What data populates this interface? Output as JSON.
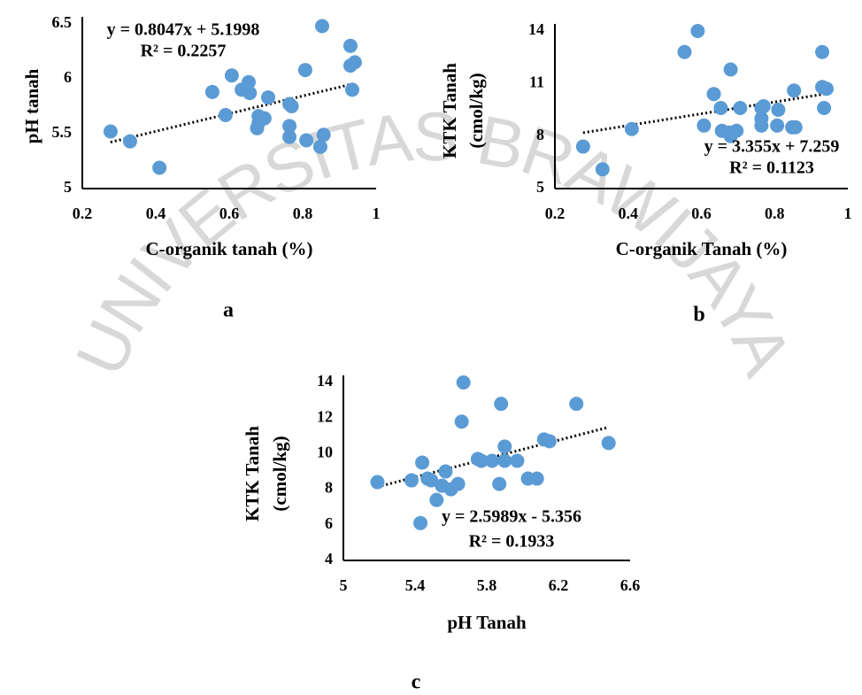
{
  "watermark": "UNIVERSITAS BRAWIJAYA",
  "chart_data": [
    {
      "type": "scatter",
      "panel": "a",
      "xlabel": "C-organik tanah (%)",
      "ylabel": [
        "pH tanah"
      ],
      "color": "#5b9bd5",
      "x": [
        0.277,
        0.33,
        0.41,
        0.554,
        0.59,
        0.607,
        0.634,
        0.653,
        0.656,
        0.68,
        0.68,
        0.676,
        0.696,
        0.706,
        0.764,
        0.764,
        0.764,
        0.77,
        0.807,
        0.81,
        0.848,
        0.853,
        0.857,
        0.93,
        0.93,
        0.935,
        0.942
      ],
      "values": [
        5.52,
        5.43,
        5.19,
        5.88,
        5.67,
        6.03,
        5.9,
        5.97,
        5.87,
        5.66,
        5.6,
        5.55,
        5.64,
        5.83,
        5.77,
        5.57,
        5.47,
        5.75,
        6.08,
        5.44,
        5.38,
        6.48,
        5.49,
        6.3,
        6.12,
        5.9,
        6.15
      ],
      "xlim": [
        0.2,
        1
      ],
      "xticks": [
        0.2,
        0.4,
        0.6,
        0.8,
        1
      ],
      "ylim": [
        5,
        6.5
      ],
      "yticks": [
        5,
        5.5,
        6,
        6.5
      ],
      "trendline": {
        "slope": 0.8047,
        "intercept": 5.1998,
        "equation": [
          "y = 0.8047x + 5.1998",
          "R² = 0.2257"
        ]
      }
    },
    {
      "type": "scatter",
      "panel": "b",
      "xlabel": "C-organik Tanah (%)",
      "ylabel": [
        "KTK Tanah",
        "(cmol/kg)"
      ],
      "color": "#5b9bd5",
      "x": [
        0.277,
        0.33,
        0.41,
        0.554,
        0.59,
        0.607,
        0.634,
        0.653,
        0.656,
        0.68,
        0.68,
        0.676,
        0.696,
        0.706,
        0.764,
        0.764,
        0.764,
        0.77,
        0.807,
        0.81,
        0.848,
        0.853,
        0.857,
        0.93,
        0.93,
        0.935,
        0.942
      ],
      "values": [
        7.4,
        6.1,
        8.4,
        12.8,
        14,
        8.6,
        10.4,
        9.6,
        8.3,
        11.8,
        8,
        8.2,
        8.3,
        9.6,
        9.6,
        9,
        8.6,
        9.7,
        8.6,
        9.5,
        8.5,
        10.6,
        8.5,
        12.8,
        10.8,
        9.6,
        10.7
      ],
      "xlim": [
        0.2,
        1
      ],
      "xticks": [
        0.2,
        0.4,
        0.6,
        0.8,
        1
      ],
      "ylim": [
        5,
        14
      ],
      "yticks": [
        5,
        8,
        11,
        14
      ],
      "trendline": {
        "slope": 3.355,
        "intercept": 7.259,
        "equation": [
          "y = 3.355x + 7.259",
          "R² = 0.1123"
        ]
      }
    },
    {
      "type": "scatter",
      "panel": "c",
      "xlabel": "pH Tanah",
      "ylabel": [
        "KTK Tanah",
        "(cmol/kg)"
      ],
      "color": "#5b9bd5",
      "x": [
        5.52,
        5.43,
        5.19,
        5.88,
        5.67,
        6.03,
        5.9,
        5.97,
        5.87,
        5.66,
        5.6,
        5.55,
        5.64,
        5.83,
        5.77,
        5.57,
        5.47,
        5.75,
        6.08,
        5.44,
        5.38,
        6.48,
        5.49,
        6.3,
        6.12,
        5.9,
        6.15
      ],
      "values": [
        7.4,
        6.1,
        8.4,
        12.8,
        14,
        8.6,
        10.4,
        9.6,
        8.3,
        11.8,
        8,
        8.2,
        8.3,
        9.6,
        9.6,
        9,
        8.6,
        9.7,
        8.6,
        9.5,
        8.5,
        10.6,
        8.5,
        12.8,
        10.8,
        9.6,
        10.7
      ],
      "xlim": [
        5,
        6.6
      ],
      "xticks": [
        5,
        5.4,
        5.8,
        6.2,
        6.6
      ],
      "ylim": [
        4,
        14
      ],
      "yticks": [
        4,
        6,
        8,
        10,
        12,
        14
      ],
      "trendline": {
        "slope": 2.5989,
        "intercept": -5.356,
        "equation": [
          "y = 2.5989x - 5.356",
          "R² = 0.1933"
        ]
      }
    }
  ]
}
